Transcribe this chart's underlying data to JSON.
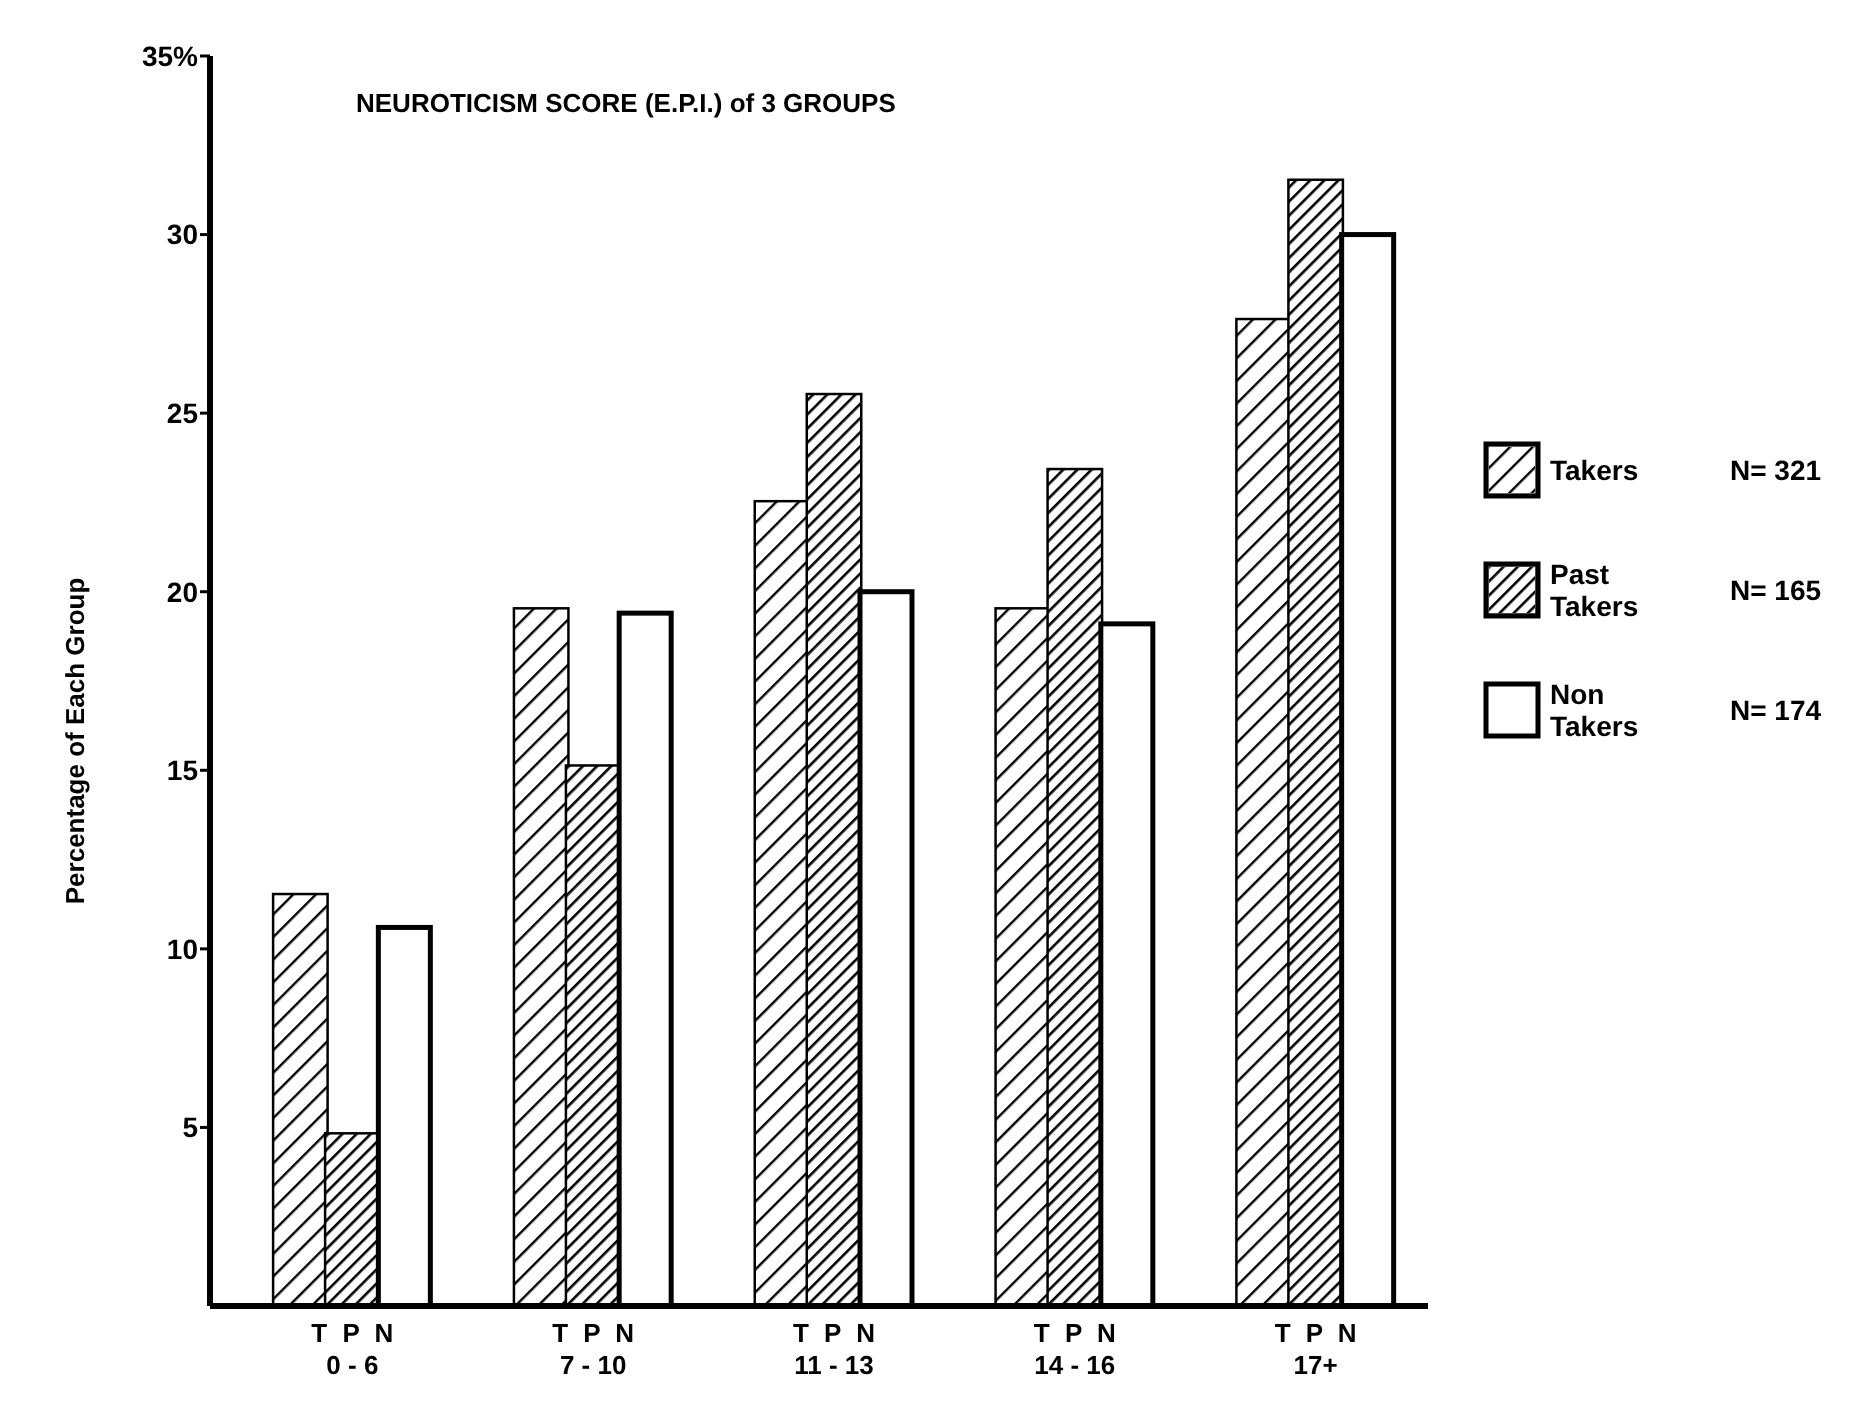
{
  "chart_data": {
    "type": "bar",
    "title": "NEUROTICISM SCORE (E.P.I.) of 3 GROUPS",
    "ylabel": "Percentage of Each Group",
    "categories": [
      "0 - 6",
      "7 - 10",
      "11 - 13",
      "14 - 16",
      "17+"
    ],
    "series": [
      {
        "name": "Takers",
        "color": "#c8c8c8",
        "values": [
          11.5,
          19.5,
          22.5,
          19.5,
          27.6
        ]
      },
      {
        "name": "Past Takers",
        "color": "#8c8c8c",
        "values": [
          4.8,
          15.1,
          25.5,
          23.4,
          31.5
        ]
      },
      {
        "name": "Non Takers",
        "color": "#ffffff",
        "values": [
          10.6,
          19.4,
          20.0,
          19.1,
          30.0
        ]
      }
    ],
    "ylim": [
      0,
      35
    ],
    "yticks": [
      5,
      10,
      15,
      20,
      25,
      30,
      {
        "value": 35,
        "label": "35%"
      }
    ],
    "grid": false,
    "legend": "right",
    "annotations": [
      "N= 321",
      "N= 165",
      "N= 174",
      "T P N",
      "T P N",
      "T P N",
      "T P N",
      "T P N"
    ]
  }
}
